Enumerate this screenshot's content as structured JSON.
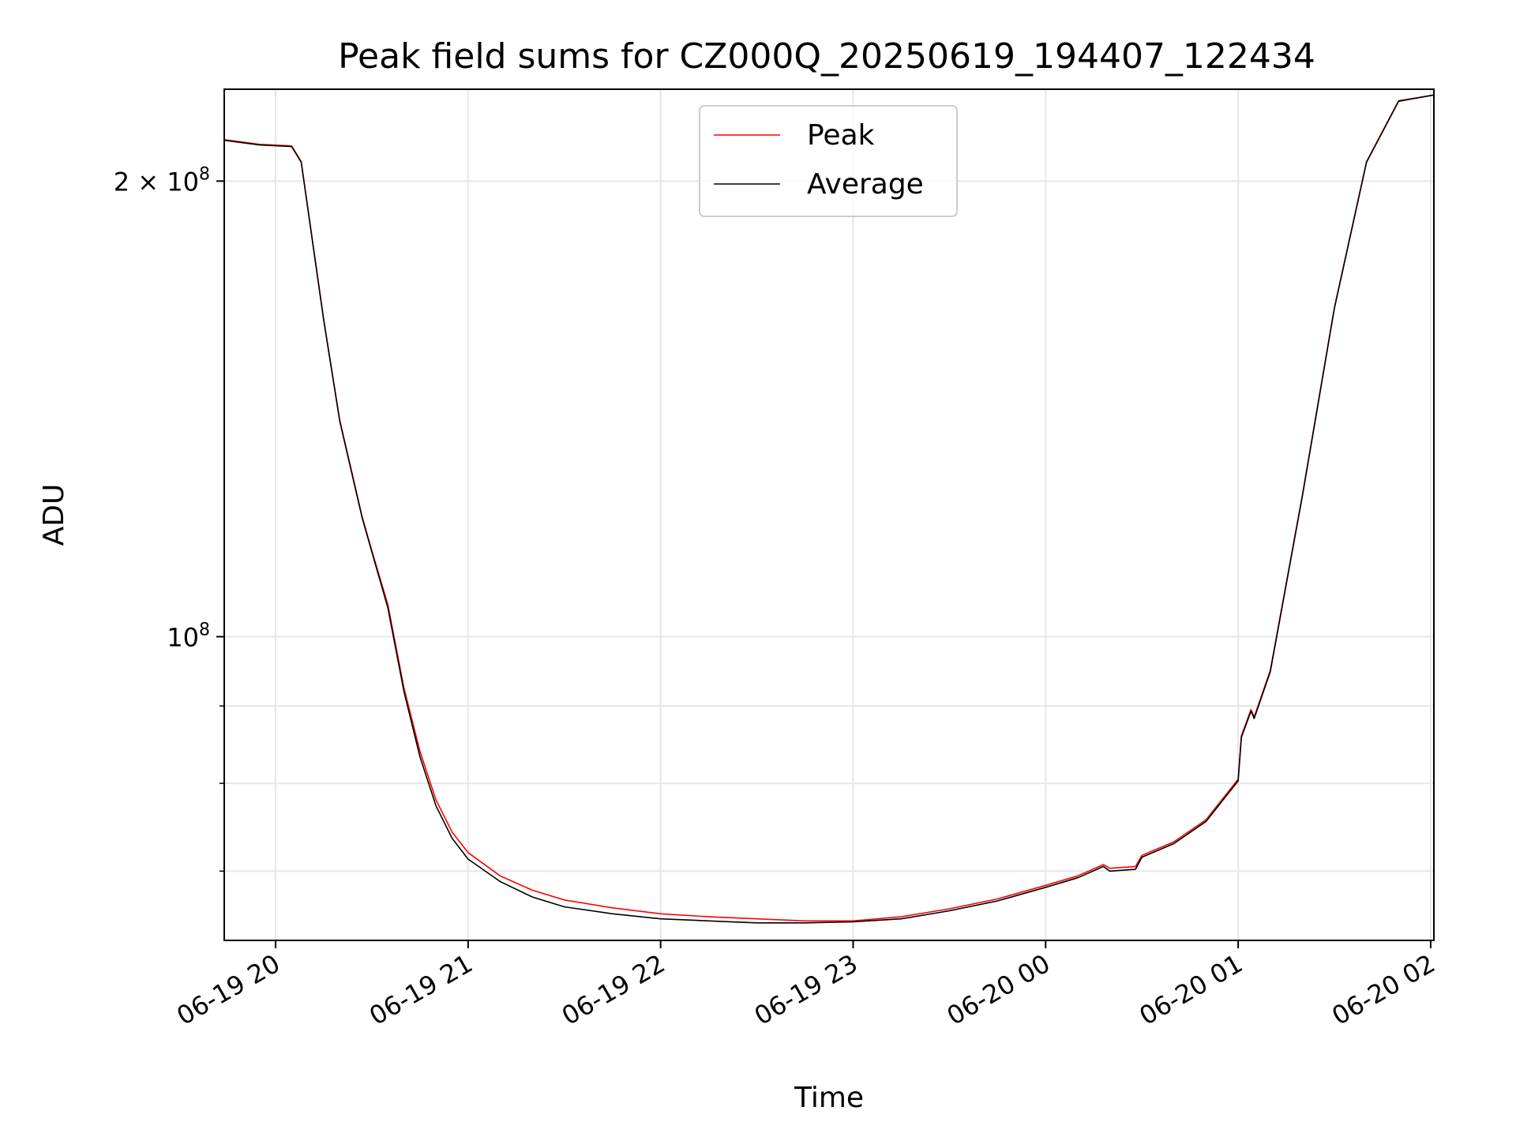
{
  "chart_data": {
    "type": "line",
    "title": "Peak field sums for CZ000Q_20250619_194407_122434",
    "xlabel": "Time",
    "ylabel": "ADU",
    "x_axis": {
      "type": "time",
      "range": [
        "2025-06-19 19:44",
        "2025-06-20 02:01"
      ],
      "ticks": [
        {
          "value": "2025-06-19 20:00",
          "label": "06-19 20"
        },
        {
          "value": "2025-06-19 21:00",
          "label": "06-19 21"
        },
        {
          "value": "2025-06-19 22:00",
          "label": "06-19 22"
        },
        {
          "value": "2025-06-19 23:00",
          "label": "06-19 23"
        },
        {
          "value": "2025-06-20 00:00",
          "label": "06-20 00"
        },
        {
          "value": "2025-06-20 01:00",
          "label": "06-20 01"
        },
        {
          "value": "2025-06-20 02:00",
          "label": "06-20 02"
        }
      ]
    },
    "y_axis": {
      "scale": "log",
      "range": [
        63000000,
        230000000
      ],
      "major_ticks": [
        {
          "value": 100000000,
          "base": "10",
          "exp": "8",
          "mult": ""
        },
        {
          "value": 200000000,
          "base": "10",
          "exp": "8",
          "mult": "2 × "
        }
      ],
      "minor_ticks": [
        70000000,
        80000000,
        90000000
      ]
    },
    "grid": true,
    "legend": {
      "placement": "upper center"
    },
    "series": [
      {
        "name": "Peak",
        "color": "#ff0000",
        "x": [
          "2025-06-19 19:44",
          "2025-06-19 19:55",
          "2025-06-19 20:05",
          "2025-06-19 20:08",
          "2025-06-19 20:15",
          "2025-06-19 20:20",
          "2025-06-19 20:27",
          "2025-06-19 20:30",
          "2025-06-19 20:35",
          "2025-06-19 20:40",
          "2025-06-19 20:45",
          "2025-06-19 20:50",
          "2025-06-19 20:55",
          "2025-06-19 21:00",
          "2025-06-19 21:10",
          "2025-06-19 21:20",
          "2025-06-19 21:30",
          "2025-06-19 21:45",
          "2025-06-19 22:00",
          "2025-06-19 22:15",
          "2025-06-19 22:30",
          "2025-06-19 22:45",
          "2025-06-19 23:00",
          "2025-06-19 23:15",
          "2025-06-19 23:30",
          "2025-06-19 23:45",
          "2025-06-20 00:00",
          "2025-06-20 00:10",
          "2025-06-20 00:18",
          "2025-06-20 00:20",
          "2025-06-20 00:28",
          "2025-06-20 00:30",
          "2025-06-20 00:40",
          "2025-06-20 00:50",
          "2025-06-20 01:00",
          "2025-06-20 01:01",
          "2025-06-20 01:04",
          "2025-06-20 01:05",
          "2025-06-20 01:10",
          "2025-06-20 01:20",
          "2025-06-20 01:30",
          "2025-06-20 01:40",
          "2025-06-20 01:50",
          "2025-06-20 02:01"
        ],
        "y": [
          213000000,
          211500000,
          211000000,
          206000000,
          162000000,
          139000000,
          120000000,
          114000000,
          105000000,
          92500000,
          84000000,
          78000000,
          74300000,
          72000000,
          69500000,
          68000000,
          67000000,
          66200000,
          65600000,
          65300000,
          65100000,
          64900000,
          64900000,
          65300000,
          66100000,
          67100000,
          68500000,
          69500000,
          70700000,
          70300000,
          70500000,
          71700000,
          73200000,
          75700000,
          80500000,
          86000000,
          89500000,
          88500000,
          95000000,
          124000000,
          165000000,
          206000000,
          226000000,
          228000000
        ]
      },
      {
        "name": "Average",
        "color": "#000000",
        "x": [
          "2025-06-19 19:44",
          "2025-06-19 19:55",
          "2025-06-19 20:05",
          "2025-06-19 20:08",
          "2025-06-19 20:15",
          "2025-06-19 20:20",
          "2025-06-19 20:27",
          "2025-06-19 20:30",
          "2025-06-19 20:35",
          "2025-06-19 20:40",
          "2025-06-19 20:45",
          "2025-06-19 20:50",
          "2025-06-19 20:55",
          "2025-06-19 21:00",
          "2025-06-19 21:10",
          "2025-06-19 21:20",
          "2025-06-19 21:30",
          "2025-06-19 21:45",
          "2025-06-19 22:00",
          "2025-06-19 22:15",
          "2025-06-19 22:30",
          "2025-06-19 22:45",
          "2025-06-19 23:00",
          "2025-06-19 23:15",
          "2025-06-19 23:30",
          "2025-06-19 23:45",
          "2025-06-20 00:00",
          "2025-06-20 00:10",
          "2025-06-20 00:18",
          "2025-06-20 00:20",
          "2025-06-20 00:28",
          "2025-06-20 00:30",
          "2025-06-20 00:40",
          "2025-06-20 00:50",
          "2025-06-20 01:00",
          "2025-06-20 01:01",
          "2025-06-20 01:04",
          "2025-06-20 01:05",
          "2025-06-20 01:10",
          "2025-06-20 01:20",
          "2025-06-20 01:30",
          "2025-06-20 01:40",
          "2025-06-20 01:50",
          "2025-06-20 02:01"
        ],
        "y": [
          212800000,
          211300000,
          210800000,
          205800000,
          161800000,
          138800000,
          119800000,
          113800000,
          104500000,
          92000000,
          83300000,
          77300000,
          73600000,
          71300000,
          68900000,
          67300000,
          66300000,
          65600000,
          65100000,
          64900000,
          64700000,
          64700000,
          64800000,
          65100000,
          65900000,
          66900000,
          68300000,
          69300000,
          70500000,
          70000000,
          70200000,
          71500000,
          73000000,
          75500000,
          80300000,
          85800000,
          89300000,
          88300000,
          94800000,
          123800000,
          164800000,
          205800000,
          225800000,
          228000000
        ]
      }
    ]
  }
}
